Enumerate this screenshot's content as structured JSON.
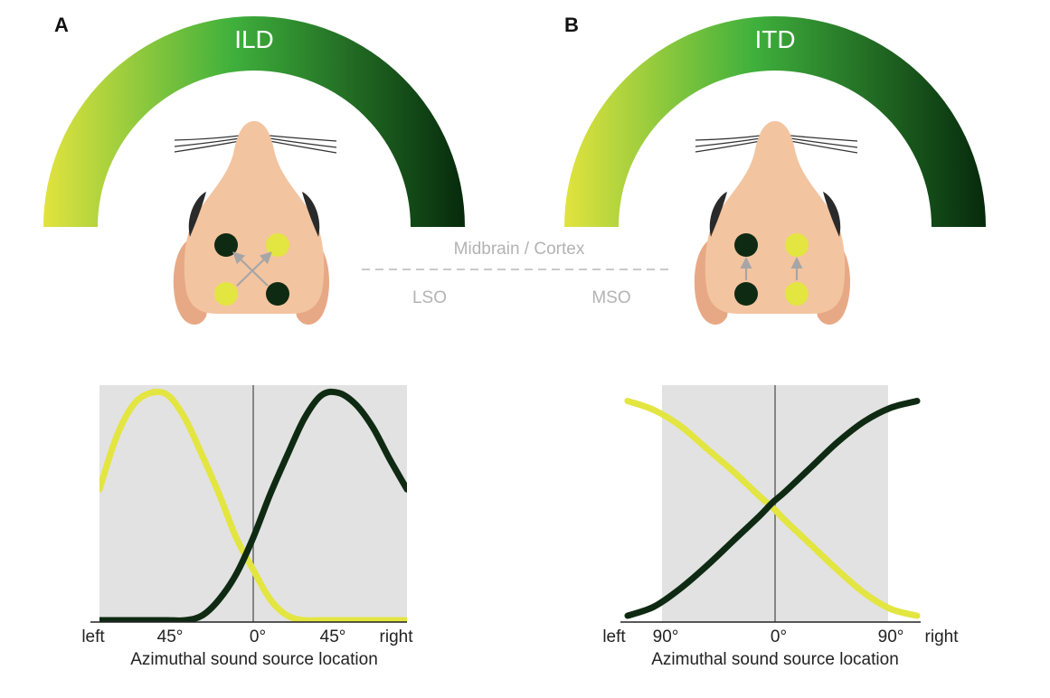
{
  "panels": [
    {
      "letter": "A",
      "arc_label": "ILD",
      "nucleus_label": "LSO",
      "connection": "crossed",
      "x_tick_labels": [
        "left",
        "45°",
        "0°",
        "45°",
        "right"
      ],
      "x_axis_title": "Azimuthal sound source location"
    },
    {
      "letter": "B",
      "arc_label": "ITD",
      "nucleus_label": "MSO",
      "connection": "parallel",
      "x_tick_labels": [
        "left",
        "90°",
        "0°",
        "90°",
        "right"
      ],
      "x_axis_title": "Azimuthal sound source location"
    }
  ],
  "shared": {
    "upper_level_label": "Midbrain / Cortex"
  },
  "colors": {
    "yellow": "#e3e541",
    "dark_green": "#0f2a12",
    "arc_left": "#e2e33e",
    "arc_mid": "#3fb03c",
    "arc_right": "#062a0c",
    "plot_bg": "#e2e2e2",
    "head_skin": "#f3c4a0",
    "arrow": "#a6a6a6"
  },
  "chart_data": [
    {
      "type": "line",
      "x_unit": "degrees azimuth",
      "xlim": [
        -90,
        90
      ],
      "shaded_region": [
        -90,
        90
      ],
      "x_tick_labels": [
        "left",
        "45°",
        "0°",
        "45°",
        "right"
      ],
      "xlabel": "Azimuthal sound source location",
      "ylabel": "",
      "y_ticks": "none",
      "series": [
        {
          "color": "#e3e541",
          "x": [
            -90,
            -80,
            -70,
            -60,
            -50,
            -40,
            -30,
            -20,
            -10,
            0,
            10,
            20,
            30,
            40,
            50,
            60,
            70,
            80,
            90
          ],
          "y": [
            0.57,
            0.8,
            0.94,
            0.99,
            0.98,
            0.88,
            0.72,
            0.55,
            0.36,
            0.22,
            0.09,
            0.02,
            0,
            0,
            0,
            0,
            0,
            0,
            0
          ]
        },
        {
          "color": "#0f2a12",
          "x": [
            -90,
            -80,
            -70,
            -60,
            -50,
            -40,
            -30,
            -20,
            -10,
            0,
            10,
            20,
            30,
            40,
            50,
            60,
            70,
            80,
            90
          ],
          "y": [
            0,
            0,
            0,
            0,
            0,
            0,
            0.02,
            0.09,
            0.2,
            0.36,
            0.55,
            0.72,
            0.88,
            0.98,
            0.99,
            0.94,
            0.84,
            0.7,
            0.57
          ]
        }
      ]
    },
    {
      "type": "line",
      "x_unit": "degrees azimuth",
      "xlim": [
        -110,
        110
      ],
      "shaded_region": [
        -90,
        90
      ],
      "x_tick_labels": [
        "left",
        "90°",
        "0°",
        "90°",
        "right"
      ],
      "xlabel": "Azimuthal sound source location",
      "ylabel": "",
      "y_ticks": "none",
      "series": [
        {
          "color": "#e3e541",
          "x": [
            -110,
            -90,
            -70,
            -50,
            -30,
            -10,
            0,
            10,
            30,
            50,
            70,
            90,
            110
          ],
          "y": [
            0.97,
            0.93,
            0.86,
            0.76,
            0.66,
            0.55,
            0.5,
            0.44,
            0.33,
            0.22,
            0.12,
            0.05,
            0.02
          ]
        },
        {
          "color": "#0f2a12",
          "x": [
            -110,
            -90,
            -70,
            -50,
            -30,
            -10,
            0,
            10,
            30,
            50,
            70,
            90,
            110
          ],
          "y": [
            0.02,
            0.06,
            0.14,
            0.24,
            0.35,
            0.46,
            0.52,
            0.57,
            0.68,
            0.79,
            0.88,
            0.94,
            0.97
          ]
        }
      ]
    }
  ]
}
